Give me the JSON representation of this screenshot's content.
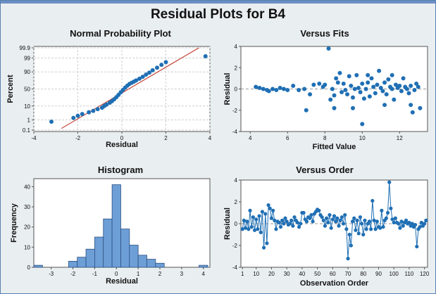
{
  "title": "Residual Plots for B4",
  "colors": {
    "point": "#1f6fb4",
    "bar": "#6d9fd6",
    "fitline": "#c0392b",
    "frame": "#6b8fc4",
    "background": "#e9eef0"
  },
  "chart_data": [
    {
      "type": "scatter",
      "title": "Normal Probability Plot",
      "xlabel": "Residual",
      "ylabel": "Percent",
      "xlim": [
        -4,
        4
      ],
      "xticks": [
        -4,
        -2,
        0,
        2,
        4
      ],
      "yscale": "probability",
      "yticks": [
        0.1,
        1,
        10,
        50,
        90,
        99,
        99.9
      ],
      "grid": true,
      "fit_line": {
        "x": [
          -2.75,
          3.5
        ],
        "y": [
          0.15,
          99.9
        ]
      },
      "points": [
        [
          -3.2,
          0.7
        ],
        [
          -2.2,
          1.5
        ],
        [
          -2.0,
          2.2
        ],
        [
          -1.8,
          3.0
        ],
        [
          -1.5,
          4.0
        ],
        [
          -1.3,
          5.0
        ],
        [
          -1.1,
          6.5
        ],
        [
          -0.9,
          8.0
        ],
        [
          -0.8,
          10.0
        ],
        [
          -0.7,
          12.0
        ],
        [
          -0.55,
          15.0
        ],
        [
          -0.45,
          18.0
        ],
        [
          -0.35,
          22.0
        ],
        [
          -0.25,
          27.0
        ],
        [
          -0.15,
          33.0
        ],
        [
          -0.05,
          40.0
        ],
        [
          0.05,
          47.0
        ],
        [
          0.15,
          54.0
        ],
        [
          0.25,
          60.0
        ],
        [
          0.35,
          65.0
        ],
        [
          0.45,
          68.0
        ],
        [
          0.55,
          71.0
        ],
        [
          0.65,
          74.0
        ],
        [
          0.8,
          78.0
        ],
        [
          0.95,
          82.0
        ],
        [
          1.1,
          86.0
        ],
        [
          1.25,
          89.0
        ],
        [
          1.4,
          92.0
        ],
        [
          1.6,
          94.5
        ],
        [
          1.8,
          96.5
        ],
        [
          2.0,
          97.8
        ],
        [
          3.8,
          99.3
        ]
      ]
    },
    {
      "type": "scatter",
      "title": "Versus Fits",
      "xlabel": "Fitted Value",
      "ylabel": "Residual",
      "xlim": [
        3.5,
        13.5
      ],
      "xticks": [
        4,
        6,
        8,
        10,
        12
      ],
      "ylim": [
        -4,
        4
      ],
      "yticks": [
        -4,
        -2,
        0,
        2,
        4
      ],
      "reference_line": 0,
      "points": [
        [
          4.3,
          0.2
        ],
        [
          4.5,
          0.1
        ],
        [
          4.7,
          0.0
        ],
        [
          4.9,
          -0.1
        ],
        [
          5.0,
          -0.2
        ],
        [
          5.2,
          0.0
        ],
        [
          5.4,
          -0.1
        ],
        [
          5.6,
          0.1
        ],
        [
          5.8,
          0.0
        ],
        [
          6.0,
          -0.1
        ],
        [
          6.3,
          0.3
        ],
        [
          6.6,
          -0.1
        ],
        [
          6.9,
          0.0
        ],
        [
          7.0,
          -2.0
        ],
        [
          7.2,
          -0.5
        ],
        [
          7.4,
          0.4
        ],
        [
          7.7,
          0.5
        ],
        [
          7.9,
          0.2
        ],
        [
          8.0,
          0.4
        ],
        [
          8.2,
          3.8
        ],
        [
          8.3,
          -1.0
        ],
        [
          8.4,
          0.0
        ],
        [
          8.5,
          -0.6
        ],
        [
          8.6,
          1.0
        ],
        [
          8.7,
          0.6
        ],
        [
          8.8,
          1.5
        ],
        [
          8.9,
          -0.3
        ],
        [
          9.0,
          0.5
        ],
        [
          9.1,
          -0.1
        ],
        [
          9.2,
          -0.5
        ],
        [
          9.3,
          1.2
        ],
        [
          9.4,
          0.3
        ],
        [
          9.5,
          -0.8
        ],
        [
          9.6,
          0.0
        ],
        [
          9.7,
          1.3
        ],
        [
          9.8,
          0.1
        ],
        [
          9.9,
          -0.3
        ],
        [
          10.0,
          0.5
        ],
        [
          10.1,
          -0.9
        ],
        [
          10.2,
          0.0
        ],
        [
          10.3,
          0.6
        ],
        [
          10.4,
          -0.7
        ],
        [
          10.5,
          1.0
        ],
        [
          10.6,
          0.2
        ],
        [
          10.7,
          -0.4
        ],
        [
          10.8,
          0.4
        ],
        [
          10.9,
          1.7
        ],
        [
          11.0,
          0.1
        ],
        [
          11.1,
          -0.2
        ],
        [
          11.2,
          0.6
        ],
        [
          11.3,
          -0.5
        ],
        [
          11.4,
          0.9
        ],
        [
          11.5,
          0.2
        ],
        [
          11.6,
          0.0
        ],
        [
          11.7,
          -1.0
        ],
        [
          11.8,
          0.4
        ],
        [
          11.9,
          0.1
        ],
        [
          12.0,
          0.3
        ],
        [
          12.1,
          -0.2
        ],
        [
          12.2,
          1.0
        ],
        [
          12.3,
          0.2
        ],
        [
          12.4,
          0.0
        ],
        [
          12.5,
          -0.4
        ],
        [
          12.6,
          0.3
        ],
        [
          12.7,
          -2.2
        ],
        [
          12.8,
          -0.1
        ],
        [
          12.9,
          0.5
        ],
        [
          13.0,
          0.2
        ],
        [
          13.1,
          -1.8
        ],
        [
          10.0,
          -3.3
        ],
        [
          9.5,
          -1.8
        ],
        [
          8.5,
          -1.8
        ],
        [
          11.2,
          -1.5
        ],
        [
          12.6,
          -1.5
        ],
        [
          11.6,
          1.3
        ],
        [
          10.3,
          1.3
        ]
      ]
    },
    {
      "type": "bar",
      "title": "Histogram",
      "xlabel": "Residual",
      "ylabel": "Frequency",
      "bin_width": 0.4,
      "bin_centers": [
        -3.6,
        -3.2,
        -2.8,
        -2.4,
        -2.0,
        -1.6,
        -1.2,
        -0.8,
        -0.4,
        0.0,
        0.4,
        0.8,
        1.2,
        1.6,
        2.0,
        2.4,
        2.8,
        3.2,
        3.6,
        4.0
      ],
      "values": [
        1,
        0,
        0,
        0,
        3,
        5,
        9,
        15,
        24,
        41,
        19,
        11,
        6,
        4,
        2,
        0,
        0,
        0,
        0,
        1
      ],
      "xlim": [
        -3.8,
        4.3
      ],
      "xticks": [
        -3,
        -2,
        -1,
        0,
        1,
        2,
        3,
        4
      ],
      "ylim": [
        0,
        44
      ],
      "yticks": [
        0,
        10,
        20,
        30,
        40
      ]
    },
    {
      "type": "line",
      "title": "Versus Order",
      "xlabel": "Observation Order",
      "ylabel": "Residual",
      "xlim": [
        0,
        122
      ],
      "xticks": [
        1,
        10,
        20,
        30,
        40,
        50,
        60,
        70,
        80,
        90,
        100,
        110,
        120
      ],
      "ylim": [
        -4,
        4
      ],
      "yticks": [
        -4,
        -2,
        0,
        2,
        4
      ],
      "reference_line": 0,
      "y": [
        -0.5,
        0.3,
        -0.4,
        0.2,
        -0.5,
        1.2,
        -0.3,
        0.6,
        -0.6,
        0.4,
        -0.5,
        0.7,
        -0.8,
        1.1,
        -2.2,
        0.9,
        -1.8,
        1.7,
        1.4,
        0.5,
        1.2,
        0.3,
        -0.5,
        0.2,
        0.1,
        -0.3,
        0.3,
        0.0,
        0.5,
        0.2,
        -0.1,
        0.0,
        0.3,
        -0.2,
        0.6,
        0.3,
        0.1,
        -0.3,
        0.0,
        1.0,
        1.0,
        0.4,
        0.2,
        0.6,
        0.5,
        0.8,
        0.2,
        0.9,
        1.1,
        1.3,
        1.2,
        0.8,
        0.6,
        0.3,
        -0.2,
        0.5,
        0.1,
        0.8,
        -0.4,
        0.4,
        0.7,
        0.2,
        0.5,
        -0.2,
        0.3,
        0.6,
        0.0,
        0.8,
        -0.5,
        -3.2,
        -1.0,
        -2.0,
        0.2,
        0.5,
        -0.6,
        0.3,
        -0.9,
        0.6,
        0.0,
        -1.0,
        0.3,
        -0.5,
        0.0,
        0.2,
        -0.5,
        2.1,
        0.3,
        -0.5,
        0.2,
        -0.3,
        -0.4,
        1.2,
        -0.3,
        0.3,
        0.5,
        1.0,
        3.8,
        1.4,
        0.4,
        0.1,
        0.5,
        0.1,
        0.0,
        -0.4,
        0.2,
        -0.2,
        0.1,
        0.3,
        0.0,
        0.1,
        -0.2,
        0.0,
        -0.3,
        -0.1,
        -2.1,
        -0.5,
        -0.3,
        0.1,
        -0.2,
        0.0,
        0.3
      ]
    }
  ]
}
